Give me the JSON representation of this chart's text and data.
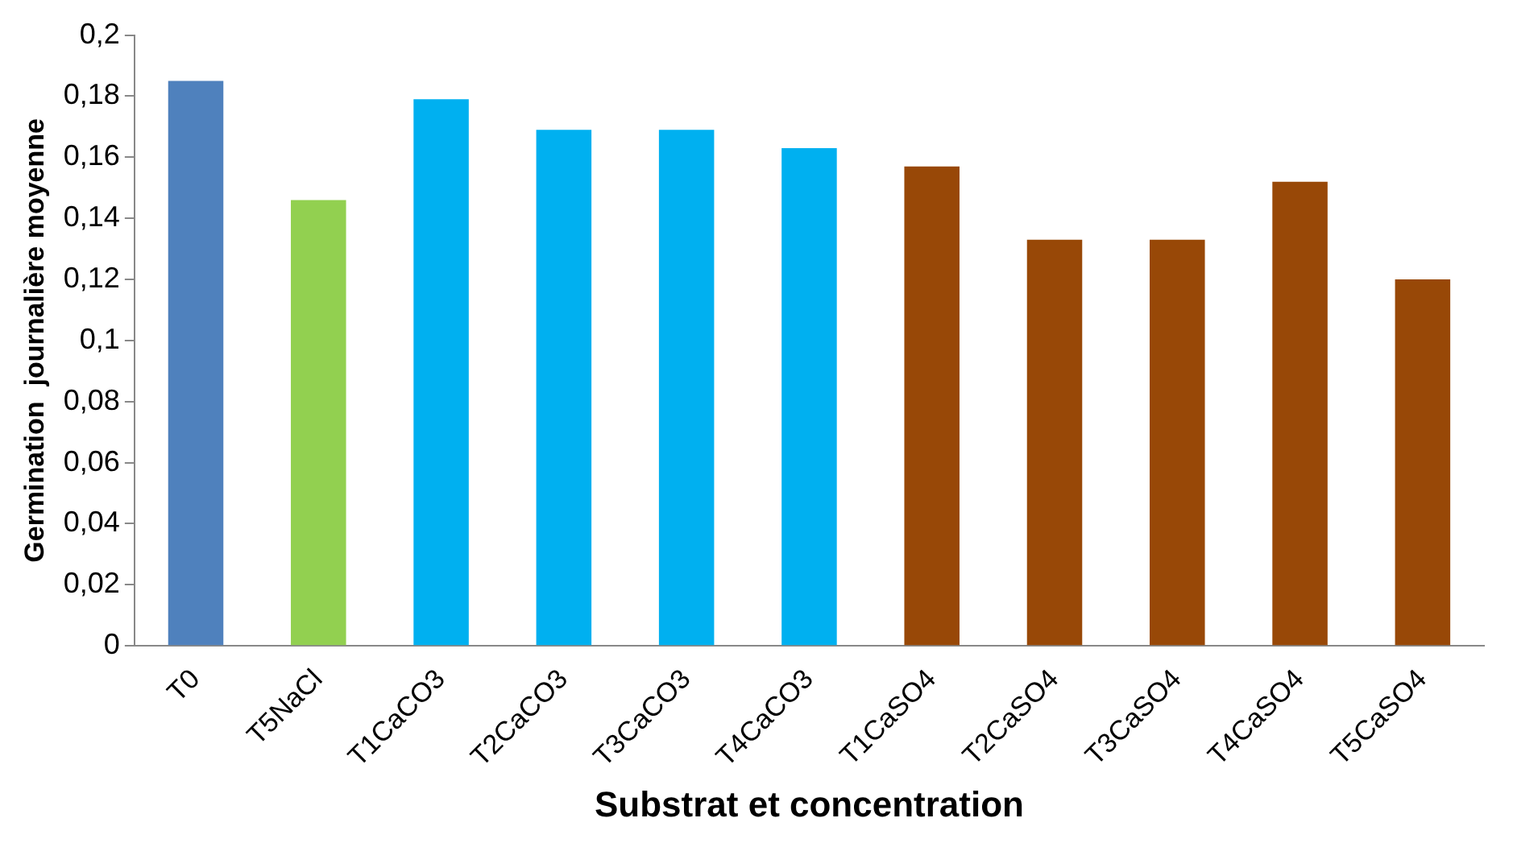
{
  "chart_data": {
    "type": "bar",
    "xlabel": "Substrat et concentration",
    "ylabel": "Germination  journalière moyenne",
    "categories": [
      "T0",
      "T5NaCl",
      "T1CaCO3",
      "T2CaCO3",
      "T3CaCO3",
      "T4CaCO3",
      "T1CaSO4",
      "T2CaSO4",
      "T3CaSO4",
      "T4CaSO4",
      "T5CaSO4"
    ],
    "values": [
      0.185,
      0.146,
      0.179,
      0.169,
      0.169,
      0.163,
      0.157,
      0.133,
      0.133,
      0.152,
      0.12
    ],
    "colors": [
      "#4f81bd",
      "#92d050",
      "#00b0f0",
      "#00b0f0",
      "#00b0f0",
      "#00b0f0",
      "#984807",
      "#984807",
      "#984807",
      "#984807",
      "#984807"
    ],
    "ylim": [
      0,
      0.2
    ],
    "yticks": [
      0,
      {
        "value": 0.02,
        "label": "0,02"
      },
      {
        "value": 0.04,
        "label": "0,04"
      },
      {
        "value": 0.06,
        "label": "0,06"
      },
      {
        "value": 0.08,
        "label": "0,08"
      },
      {
        "value": 0.1,
        "label": "0,1"
      },
      {
        "value": 0.12,
        "label": "0,12"
      },
      {
        "value": 0.14,
        "label": "0,14"
      },
      {
        "value": 0.16,
        "label": "0,16"
      },
      {
        "value": 0.18,
        "label": "0,18"
      },
      {
        "value": 0.2,
        "label": "0,2"
      }
    ],
    "grid": false,
    "legend": false
  }
}
